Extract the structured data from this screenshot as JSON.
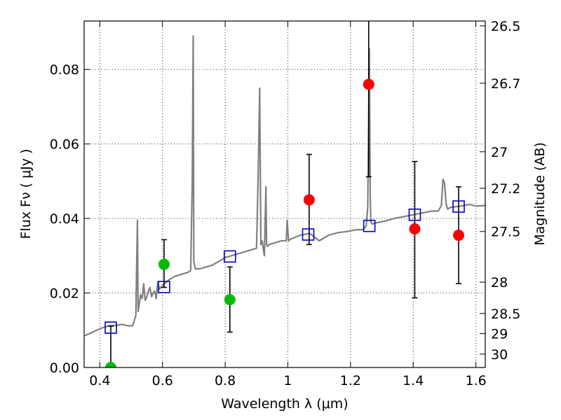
{
  "chart_data": {
    "type": "scatter",
    "xlabel": "Wavelength  λ (μm)",
    "ylabel": "Flux  Fν  ( μJy )",
    "ylabel_right": "Magnitude (AB)",
    "xlim": [
      0.35,
      1.63
    ],
    "ylim": [
      0.0,
      0.093
    ],
    "grid": true,
    "x_ticks": [
      0.4,
      0.6,
      0.8,
      1.0,
      1.2,
      1.4,
      1.6
    ],
    "x_tick_labels": [
      "0.4",
      "0.6",
      "0.8",
      "1",
      "1.2",
      "1.4",
      "1.6"
    ],
    "y_ticks": [
      0.0,
      0.02,
      0.04,
      0.06,
      0.08
    ],
    "y_tick_labels": [
      "0.00",
      "0.02",
      "0.04",
      "0.06",
      "0.08"
    ],
    "right_ticks": [
      {
        "label": "26.5",
        "flux": 0.0917
      },
      {
        "label": "26.7",
        "flux": 0.0763
      },
      {
        "label": "27",
        "flux": 0.0579
      },
      {
        "label": "27.2",
        "flux": 0.0481
      },
      {
        "label": "27.5",
        "flux": 0.0365
      },
      {
        "label": "28",
        "flux": 0.0229
      },
      {
        "label": "28.5",
        "flux": 0.0145
      },
      {
        "label": "29",
        "flux": 0.0091
      },
      {
        "label": "30",
        "flux": 0.0036
      }
    ],
    "colors": {
      "model": "#808080",
      "blue_squares": "#0000cc",
      "red_points": "#ff0000",
      "green_points": "#00bb00",
      "error_bars": "#000000",
      "grid": "#333333"
    },
    "series": [
      {
        "kind": "line",
        "x": [
          0.35,
          0.37,
          0.39,
          0.41,
          0.43,
          0.45,
          0.47,
          0.49,
          0.505,
          0.515,
          0.52,
          0.522,
          0.525,
          0.53,
          0.535,
          0.54,
          0.545,
          0.55,
          0.555,
          0.56,
          0.565,
          0.57,
          0.575,
          0.58,
          0.585,
          0.59,
          0.6,
          0.62,
          0.64,
          0.66,
          0.68,
          0.69,
          0.695,
          0.698,
          0.7,
          0.705,
          0.72,
          0.74,
          0.76,
          0.78,
          0.8,
          0.82,
          0.84,
          0.86,
          0.88,
          0.9,
          0.905,
          0.91,
          0.914,
          0.918,
          0.925,
          0.93,
          0.932,
          0.935,
          0.94,
          0.96,
          0.98,
          0.995,
          0.998,
          1.002,
          1.01,
          1.04,
          1.07,
          1.1,
          1.13,
          1.16,
          1.19,
          1.22,
          1.24,
          1.25,
          1.255,
          1.26,
          1.263,
          1.265,
          1.27,
          1.28,
          1.31,
          1.34,
          1.37,
          1.4,
          1.43,
          1.46,
          1.48,
          1.49,
          1.495,
          1.5,
          1.505,
          1.51,
          1.52,
          1.55,
          1.58,
          1.6,
          1.63
        ],
        "y": [
          0.0085,
          0.0092,
          0.01,
          0.0107,
          0.0112,
          0.0113,
          0.0116,
          0.0112,
          0.0112,
          0.014,
          0.0395,
          0.015,
          0.0165,
          0.0195,
          0.0185,
          0.0225,
          0.018,
          0.019,
          0.0205,
          0.0215,
          0.019,
          0.02,
          0.0205,
          0.0185,
          0.023,
          0.021,
          0.022,
          0.0235,
          0.0245,
          0.025,
          0.0255,
          0.026,
          0.05,
          0.089,
          0.0285,
          0.0265,
          0.0265,
          0.027,
          0.0275,
          0.0285,
          0.0295,
          0.03,
          0.0305,
          0.031,
          0.0315,
          0.032,
          0.05,
          0.075,
          0.033,
          0.034,
          0.03,
          0.0485,
          0.033,
          0.0325,
          0.033,
          0.0335,
          0.034,
          0.034,
          0.0395,
          0.034,
          0.0345,
          0.0355,
          0.036,
          0.034,
          0.0355,
          0.0362,
          0.0365,
          0.037,
          0.037,
          0.038,
          0.043,
          0.0855,
          0.045,
          0.039,
          0.0385,
          0.0388,
          0.0393,
          0.04,
          0.0405,
          0.041,
          0.0415,
          0.042,
          0.042,
          0.0435,
          0.0505,
          0.0495,
          0.044,
          0.0425,
          0.043,
          0.0433,
          0.0438,
          0.0433,
          0.0435
        ]
      },
      {
        "kind": "squares",
        "x": [
          0.435,
          0.605,
          0.815,
          1.065,
          1.26,
          1.405,
          1.545
        ],
        "y": [
          0.0107,
          0.0216,
          0.0298,
          0.0357,
          0.038,
          0.041,
          0.0432
        ]
      },
      {
        "kind": "points",
        "color": "red",
        "x": [
          1.068,
          1.258,
          1.405,
          1.545
        ],
        "y": [
          0.045,
          0.076,
          0.0372,
          0.0355
        ],
        "err_low": [
          0.033,
          0.0512,
          0.0187,
          0.0225
        ],
        "err_high": [
          0.0572,
          0.0935,
          0.0553,
          0.0485
        ]
      },
      {
        "kind": "points",
        "color": "green",
        "x": [
          0.435,
          0.605,
          0.815
        ],
        "y": [
          0.0,
          0.0277,
          0.0182
        ],
        "err_low": [
          0.0,
          0.0215,
          0.0095
        ],
        "err_high": [
          0.0111,
          0.0343,
          0.027
        ]
      }
    ]
  }
}
